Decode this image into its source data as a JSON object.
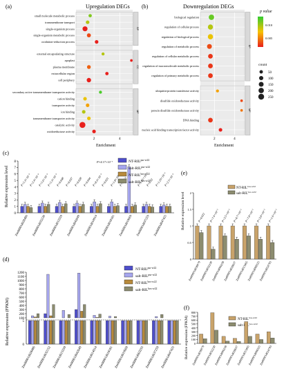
{
  "panels": {
    "a": {
      "letter": "(a)",
      "title": "Upregulation DEGs",
      "xlabel": "Enrichment",
      "ticks": [
        "2",
        "4"
      ]
    },
    "b": {
      "letter": "(b)",
      "title": "Downregulation DEGs",
      "xlabel": "Enrichment",
      "ticks": [
        "2",
        "4"
      ]
    },
    "c": {
      "letter": "(c)",
      "ylabel": "Relative expression level"
    },
    "d": {
      "letter": "(d)",
      "ylabel": "Relative expression (FPKM)"
    },
    "e": {
      "letter": "(e)",
      "ylabel": "Relative expression level"
    },
    "f": {
      "letter": "(f)",
      "ylabel": "Relative expression (FPKM)"
    }
  },
  "legend_pvalue": {
    "title": "p value",
    "ticks": [
      "0.010",
      "0.005"
    ]
  },
  "legend_count": {
    "title": "count",
    "items": [
      "50",
      "100",
      "150",
      "200",
      "250"
    ]
  },
  "legend_cd": [
    "NT-RILpur-w22",
    "salt-RILpur-w22",
    "NT-RILbos-w22",
    "salt-RILbos-w22"
  ],
  "legend_ef": [
    "NT-RILbos-w22",
    "salt-RILbos-w22"
  ],
  "chart_data": [
    {
      "type": "scatter",
      "title": "Upregulation DEGs",
      "xlabel": "Enrichment",
      "groups": [
        {
          "name": "BP",
          "terms": [
            {
              "label": "small molecule metabolic process",
              "x": 1.7,
              "p": 0.012,
              "count": 30
            },
            {
              "label": "transmembrane transport",
              "x": 1.5,
              "p": 0.01,
              "count": 40
            },
            {
              "label": "single-organism process",
              "x": 1.3,
              "p": 0.0,
              "count": 120
            },
            {
              "label": "single-organism metabolic process",
              "x": 1.6,
              "p": 0.002,
              "count": 60
            },
            {
              "label": "oxidation-reduction process",
              "x": 2.2,
              "p": 0.0,
              "count": 40
            }
          ]
        },
        {
          "name": "CC",
          "terms": [
            {
              "label": "external encapsulating structure",
              "x": 2.7,
              "p": 0.01,
              "count": 20
            },
            {
              "label": "apoplast",
              "x": 4.9,
              "p": 0.0,
              "count": 10
            },
            {
              "label": "plasma membrane",
              "x": 1.6,
              "p": 0.003,
              "count": 50
            },
            {
              "label": "extracellular region",
              "x": 3.0,
              "p": 0.0,
              "count": 30
            },
            {
              "label": "cell periphery",
              "x": 1.6,
              "p": 0.0,
              "count": 80
            }
          ]
        },
        {
          "name": "MF",
          "terms": [
            {
              "label": "secondary active transmembrane transporter activity",
              "x": 2.5,
              "p": 0.014,
              "count": 20
            },
            {
              "label": "cation binding",
              "x": 1.3,
              "p": 0.008,
              "count": 40
            },
            {
              "label": "transporter activity",
              "x": 1.5,
              "p": 0.006,
              "count": 40
            },
            {
              "label": "ion binding",
              "x": 1.2,
              "p": 0.01,
              "count": 40
            },
            {
              "label": "transmembrane transporter activity",
              "x": 1.6,
              "p": 0.008,
              "count": 40
            },
            {
              "label": "catalytic activity",
              "x": 1.1,
              "p": 0.0,
              "count": 200
            },
            {
              "label": "oxidoreductase activity",
              "x": 2.0,
              "p": 0.0,
              "count": 40
            }
          ]
        }
      ]
    },
    {
      "type": "scatter",
      "title": "Downregulation DEGs",
      "xlabel": "Enrichment",
      "groups": [
        {
          "name": "BP",
          "terms": [
            {
              "label": "biological regulation",
              "x": 1.7,
              "p": 0.013,
              "count": 150
            },
            {
              "label": "regulation of cellular process",
              "x": 1.6,
              "p": 0.01,
              "count": 130
            },
            {
              "label": "regulation of biological process",
              "x": 1.6,
              "p": 0.008,
              "count": 140
            },
            {
              "label": "regulation of metabolic process",
              "x": 1.5,
              "p": 0.002,
              "count": 110
            },
            {
              "label": "regulation of cellular metabolic process",
              "x": 1.6,
              "p": 0.001,
              "count": 100
            },
            {
              "label": "regulation of macromolecule metabolic process",
              "x": 1.6,
              "p": 0.001,
              "count": 100
            },
            {
              "label": "regulation of primary metabolic process",
              "x": 1.6,
              "p": 0.001,
              "count": 100
            }
          ]
        },
        {
          "name": "MF",
          "terms": [
            {
              "label": "ubiquitin-protein transferase activity",
              "x": 2.3,
              "p": 0.006,
              "count": 20
            },
            {
              "label": "disulfide oxidoreductase activity",
              "x": 4.7,
              "p": 0.002,
              "count": 10
            },
            {
              "label": "protein disulfide oxidoreductase activity",
              "x": 4.7,
              "p": 0.004,
              "count": 10
            },
            {
              "label": "DNA binding",
              "x": 1.6,
              "p": 0.001,
              "count": 100
            },
            {
              "label": "nucleic acid binding transcription factor activity",
              "x": 2.6,
              "p": 0.0,
              "count": 40
            }
          ]
        }
      ]
    },
    {
      "type": "bar",
      "ylabel": "Relative expression level",
      "ylim": [
        0,
        8
      ],
      "categories": [
        "Zm00001d028486",
        "Zm00001d032230",
        "Zm00001d015559",
        "Zm00001d042049",
        "Zm00001d014914",
        "Zm00001d018181",
        "Zm00001d019669",
        "Zm00001d037259",
        "Zm00001d047425"
      ],
      "series": [
        {
          "name": "NT-RILpur-w22",
          "values": [
            1.0,
            1.0,
            1.0,
            1.0,
            1.0,
            1.0,
            1.0,
            1.0,
            1.0
          ]
        },
        {
          "name": "salt-RILpur-w22",
          "values": [
            1.3,
            1.5,
            1.6,
            1.5,
            1.7,
            1.7,
            7.1,
            1.3,
            1.2
          ]
        },
        {
          "name": "NT-RILbos-w22",
          "values": [
            1.0,
            1.0,
            1.0,
            1.0,
            1.0,
            1.0,
            1.0,
            1.0,
            1.0
          ]
        },
        {
          "name": "salt-RILbos-w22",
          "values": [
            0.8,
            1.3,
            1.4,
            1.3,
            1.4,
            1.1,
            1.2,
            0.9,
            1.0
          ]
        }
      ],
      "annotations": [
        "P=5.3×10⁻³",
        "P=2.4×10⁻⁴",
        "P=5.6×10⁻³",
        "P=5.3×10⁻³",
        "P=0.048",
        "P=0.037",
        "P=0.028",
        "P=0.044",
        "P=8.3×10⁻³",
        "P=0.021",
        "P=1.8×10⁻³",
        "P=0.013",
        "P=4.17×10⁻⁷",
        "P=1.01×10⁻³",
        "P=0.02",
        "P=1.29×10⁻³",
        "P=2.5×10⁻³"
      ]
    },
    {
      "type": "bar",
      "ylabel": "Relative expression (FPKM)",
      "ylim": [
        0,
        1200
      ],
      "categories": [
        "Zm00001d028486",
        "Zm00001d032152",
        "Zm00001d015559",
        "Zm00001d042049",
        "Zm00001d014914",
        "Zm00001d018181",
        "Zm00001d019669",
        "Zm00001d003255",
        "Zm00001d037259",
        "Zm00001d047425"
      ],
      "series": [
        {
          "name": "NT-RILpur-w22",
          "values": [
            100,
            200,
            40,
            300,
            100,
            90,
            60,
            60,
            70,
            40
          ]
        },
        {
          "name": "salt-RILpur-w22",
          "values": [
            150,
            1150,
            280,
            1180,
            160,
            140,
            80,
            90,
            130,
            80
          ]
        },
        {
          "name": "NT-RILbos-w22",
          "values": [
            120,
            150,
            50,
            260,
            110,
            100,
            70,
            80,
            90,
            50
          ]
        },
        {
          "name": "salt-RILbos-w22",
          "values": [
            200,
            420,
            180,
            420,
            190,
            130,
            80,
            90,
            180,
            90
          ]
        }
      ]
    },
    {
      "type": "bar",
      "ylabel": "Relative expression level",
      "ylim": [
        0,
        2
      ],
      "categories": [
        "Zm00001d030079",
        "Zm00001d032230",
        "Zm00001d006258",
        "Zm00001d028637",
        "Zm00001d013465",
        "Zm00001d008325",
        "Zm00001d024793"
      ],
      "series": [
        {
          "name": "NT-RILbos-w22",
          "values": [
            1.0,
            1.0,
            1.0,
            1.0,
            1.0,
            1.0,
            1.0
          ]
        },
        {
          "name": "salt-RILbos-w22",
          "values": [
            0.8,
            0.3,
            0.7,
            0.6,
            0.7,
            0.6,
            0.5
          ]
        }
      ],
      "annotations": [
        "P=0.022",
        "P=7.4×10⁻³",
        "P=3.5×10⁻³",
        "P=8.7×10⁻³",
        "P=7.8×10⁻³",
        "P=3.8×10⁻³",
        "P=1.6×10⁻³"
      ]
    },
    {
      "type": "bar",
      "ylabel": "Relative expression (FPKM)",
      "ylim": [
        0,
        800
      ],
      "categories": [
        "Zm00001d030079",
        "Zm00001d032230",
        "Zm00001d006258",
        "Zm00001d028637",
        "Zm00001d013465",
        "Zm00001d008325",
        "Zm00001d024793"
      ],
      "series": [
        {
          "name": "NT-RILbos-w22",
          "values": [
            240,
            790,
            180,
            130,
            560,
            240,
            300
          ]
        },
        {
          "name": "salt-RILbos-w22",
          "values": [
            120,
            340,
            60,
            50,
            180,
            100,
            140
          ]
        }
      ]
    }
  ]
}
